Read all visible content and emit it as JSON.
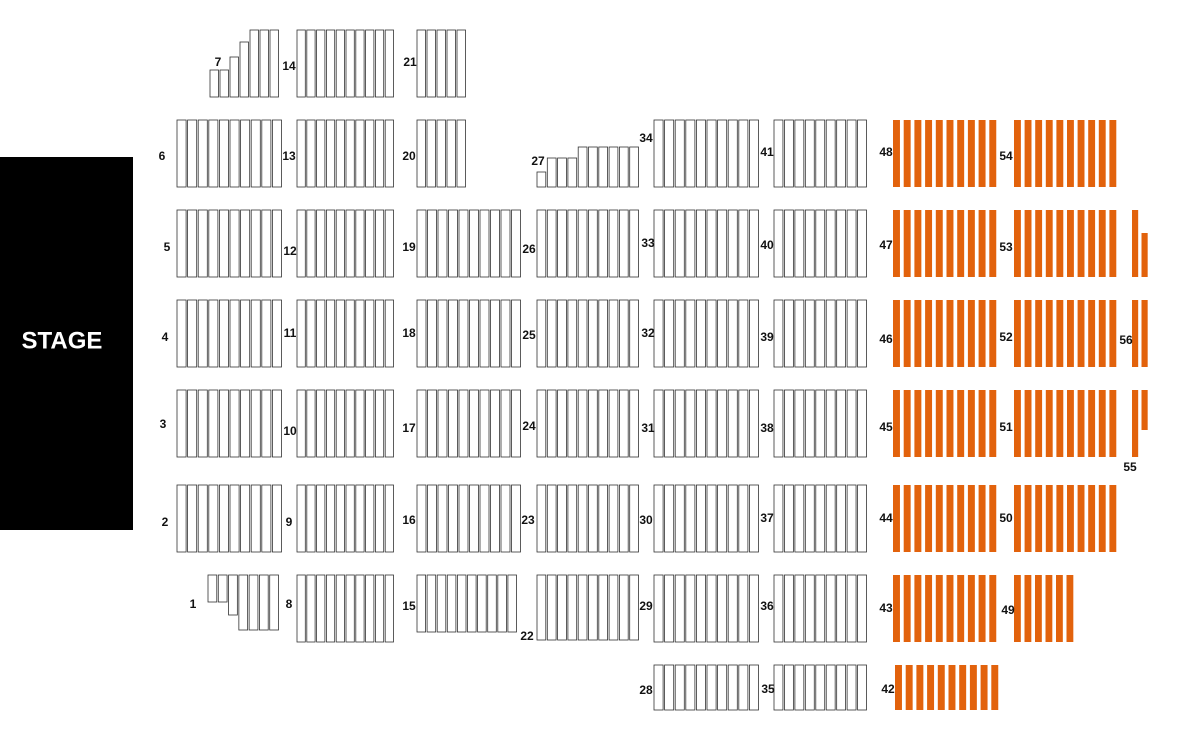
{
  "stage": "STAGE",
  "sections": [
    {
      "label": "1",
      "color": "#ffffff"
    },
    {
      "label": "2",
      "color": "#ffffff"
    },
    {
      "label": "3",
      "color": "#ffffff"
    },
    {
      "label": "4",
      "color": "#ffffff"
    },
    {
      "label": "5",
      "color": "#ffffff"
    },
    {
      "label": "6",
      "color": "#ffffff"
    },
    {
      "label": "7",
      "color": "#ffffff"
    },
    {
      "label": "8",
      "color": "#ffffff"
    },
    {
      "label": "9",
      "color": "#ffffff"
    },
    {
      "label": "10",
      "color": "#ffffff"
    },
    {
      "label": "11",
      "color": "#ffffff"
    },
    {
      "label": "12",
      "color": "#ffffff"
    },
    {
      "label": "13",
      "color": "#ffffff"
    },
    {
      "label": "14",
      "color": "#ffffff"
    },
    {
      "label": "15",
      "color": "#ffffff"
    },
    {
      "label": "16",
      "color": "#ffffff"
    },
    {
      "label": "17",
      "color": "#ffffff"
    },
    {
      "label": "18",
      "color": "#ffffff"
    },
    {
      "label": "19",
      "color": "#ffffff"
    },
    {
      "label": "20",
      "color": "#ffffff"
    },
    {
      "label": "21",
      "color": "#ffffff"
    },
    {
      "label": "22",
      "color": "#ffffff"
    },
    {
      "label": "23",
      "color": "#ffffff"
    },
    {
      "label": "24",
      "color": "#ffffff"
    },
    {
      "label": "25",
      "color": "#ffffff"
    },
    {
      "label": "26",
      "color": "#ffffff"
    },
    {
      "label": "27",
      "color": "#ffffff"
    },
    {
      "label": "28",
      "color": "#ffffff"
    },
    {
      "label": "29",
      "color": "#ffffff"
    },
    {
      "label": "30",
      "color": "#ffffff"
    },
    {
      "label": "31",
      "color": "#ffffff"
    },
    {
      "label": "32",
      "color": "#ffffff"
    },
    {
      "label": "33",
      "color": "#ffffff"
    },
    {
      "label": "34",
      "color": "#ffffff"
    },
    {
      "label": "35",
      "color": "#ffffff"
    },
    {
      "label": "36",
      "color": "#ffffff"
    },
    {
      "label": "37",
      "color": "#ffffff"
    },
    {
      "label": "38",
      "color": "#ffffff"
    },
    {
      "label": "39",
      "color": "#ffffff"
    },
    {
      "label": "40",
      "color": "#ffffff"
    },
    {
      "label": "41",
      "color": "#ffffff"
    },
    {
      "label": "42",
      "color": "#e2620c"
    },
    {
      "label": "43",
      "color": "#e2620c"
    },
    {
      "label": "44",
      "color": "#e2620c"
    },
    {
      "label": "45",
      "color": "#e2620c"
    },
    {
      "label": "46",
      "color": "#e2620c"
    },
    {
      "label": "47",
      "color": "#e2620c"
    },
    {
      "label": "48",
      "color": "#e2620c"
    },
    {
      "label": "49",
      "color": "#e2620c"
    },
    {
      "label": "50",
      "color": "#e2620c"
    },
    {
      "label": "51",
      "color": "#e2620c"
    },
    {
      "label": "52",
      "color": "#e2620c"
    },
    {
      "label": "53",
      "color": "#e2620c"
    },
    {
      "label": "54",
      "color": "#e2620c"
    },
    {
      "label": "55",
      "color": "#e2620c"
    },
    {
      "label": "56",
      "color": "#e2620c"
    }
  ]
}
